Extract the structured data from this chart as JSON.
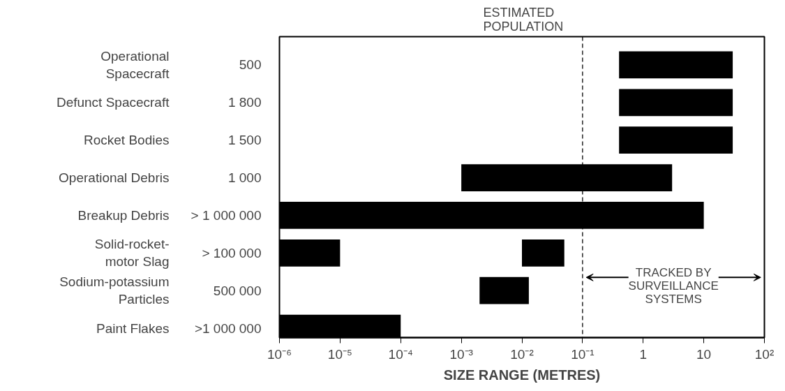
{
  "chart_data": {
    "type": "bar",
    "orientation": "horizontal",
    "log": "x",
    "categories": [
      "Operational\nSpacecraft",
      "Defunct Spacecraft",
      "Rocket Bodies",
      "Operational Debris",
      "Breakup Debris",
      "Solid-rocket-\nmotor Slag",
      "Sodium-potassium\nParticles",
      "Paint Flakes"
    ],
    "series": [
      {
        "color": "#000000",
        "base": [
          0.4,
          0.4,
          0.4,
          0.001,
          1e-06,
          1e-06,
          0.002,
          1e-06
        ],
        "values": [
          29.6,
          29.6,
          29.6,
          2.999,
          9.999999,
          9e-06,
          0.011,
          9.9e-05
        ]
      },
      {
        "color": "#000000",
        "base": [
          null,
          null,
          null,
          null,
          null,
          0.01,
          null,
          null
        ],
        "values": [
          null,
          null,
          null,
          null,
          null,
          0.04,
          null,
          null
        ]
      }
    ],
    "value_labels": [
      "500",
      "1 800",
      "1 500",
      "1 000",
      "> 1 000 000",
      "> 100 000",
      "500 000",
      ">1 000 000"
    ],
    "xlabel": "SIZE RANGE (METRES)",
    "xlim": [
      1e-06,
      100
    ],
    "xticks": [
      {
        "value": 1e-06,
        "label": "10⁻⁶"
      },
      {
        "value": 1e-05,
        "label": "10⁻⁵"
      },
      {
        "value": 0.0001,
        "label": "10⁻⁴"
      },
      {
        "value": 0.001,
        "label": "10⁻³"
      },
      {
        "value": 0.01,
        "label": "10⁻²"
      },
      {
        "value": 0.1,
        "label": "10⁻¹"
      },
      1,
      10,
      {
        "value": 100,
        "label": "10²"
      }
    ],
    "ref_lines": [
      {
        "axis": "x",
        "value": 0.1,
        "color": "#000000",
        "line_style": "dashed"
      }
    ],
    "annotations": [
      "ESTIMATED\nPOPULATION",
      "TRACKED BY\nSURVEILLANCE\nSYSTEMS"
    ],
    "grid": false
  }
}
